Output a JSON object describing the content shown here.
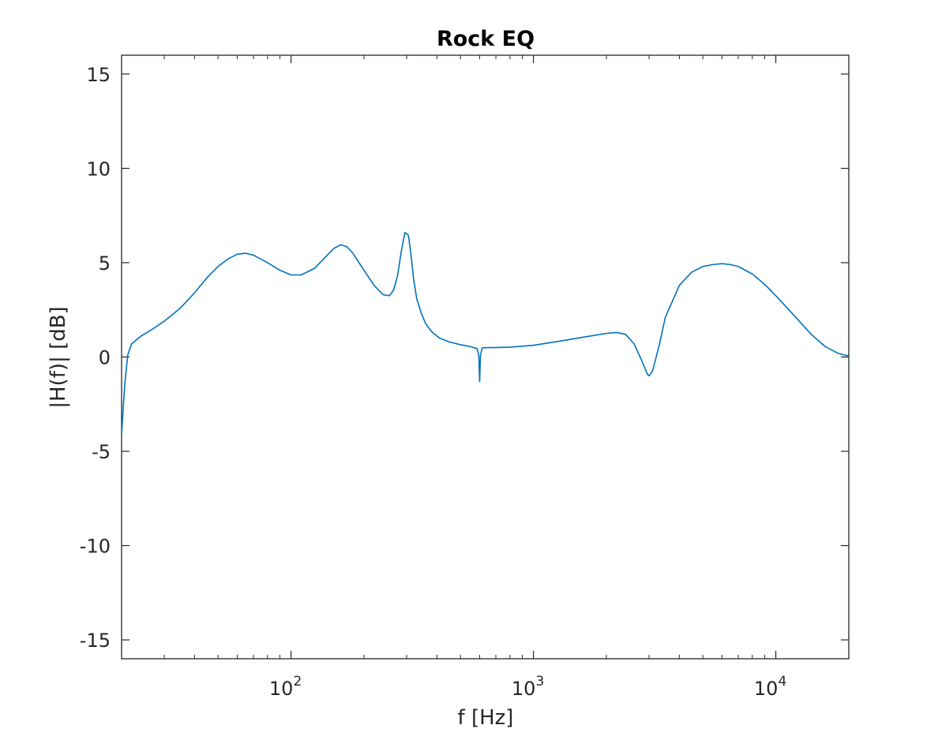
{
  "chart_data": {
    "type": "line",
    "title": "Rock EQ",
    "xlabel": "f [Hz]",
    "ylabel": "|H(f)| [dB]",
    "xscale": "log",
    "xlim": [
      20,
      20000
    ],
    "ylim": [
      -16,
      16
    ],
    "grid": false,
    "legend": "none",
    "x_ticks": [
      {
        "value": 100,
        "base": "10",
        "exp": "2"
      },
      {
        "value": 1000,
        "base": "10",
        "exp": "3"
      },
      {
        "value": 10000,
        "base": "10",
        "exp": "4"
      }
    ],
    "y_ticks": [
      {
        "value": 15,
        "label": "15"
      },
      {
        "value": 10,
        "label": "10"
      },
      {
        "value": 5,
        "label": "5"
      },
      {
        "value": 0,
        "label": "0"
      },
      {
        "value": -5,
        "label": "-5"
      },
      {
        "value": -10,
        "label": "-10"
      },
      {
        "value": -15,
        "label": "-15"
      }
    ],
    "line_color": "#0072BD",
    "series": [
      {
        "x": [
          20,
          20.6,
          21.2,
          22,
          24,
          27,
          30,
          35,
          40,
          45,
          50,
          55,
          60,
          65,
          70,
          80,
          90,
          100,
          110,
          125,
          140,
          150,
          160,
          170,
          180,
          200,
          220,
          240,
          255,
          265,
          275,
          285,
          295,
          305,
          312,
          320,
          330,
          345,
          360,
          380,
          410,
          450,
          500,
          550,
          585,
          595,
          600,
          605,
          615,
          650,
          700,
          800,
          1000,
          1300,
          1600,
          2000,
          2200,
          2400,
          2600,
          2800,
          2950,
          3000,
          3100,
          3300,
          3500,
          4000,
          4500,
          5000,
          5500,
          6000,
          6500,
          7000,
          8000,
          9000,
          10000,
          12000,
          14000,
          16000,
          18000,
          20000
        ],
        "y": [
          -4.1,
          -1.5,
          0.1,
          0.7,
          1.1,
          1.5,
          1.9,
          2.6,
          3.4,
          4.2,
          4.8,
          5.2,
          5.45,
          5.5,
          5.4,
          5.0,
          4.6,
          4.35,
          4.35,
          4.7,
          5.35,
          5.75,
          5.95,
          5.85,
          5.5,
          4.6,
          3.8,
          3.3,
          3.25,
          3.55,
          4.3,
          5.6,
          6.6,
          6.45,
          5.5,
          4.2,
          3.1,
          2.3,
          1.75,
          1.35,
          1.0,
          0.8,
          0.65,
          0.55,
          0.45,
          0.1,
          -1.3,
          0.1,
          0.48,
          0.5,
          0.5,
          0.52,
          0.62,
          0.85,
          1.05,
          1.25,
          1.3,
          1.2,
          0.7,
          -0.2,
          -0.9,
          -1.0,
          -0.75,
          0.6,
          2.1,
          3.8,
          4.5,
          4.8,
          4.9,
          4.95,
          4.9,
          4.8,
          4.4,
          3.85,
          3.25,
          2.15,
          1.2,
          0.55,
          0.2,
          0.05
        ]
      }
    ]
  }
}
